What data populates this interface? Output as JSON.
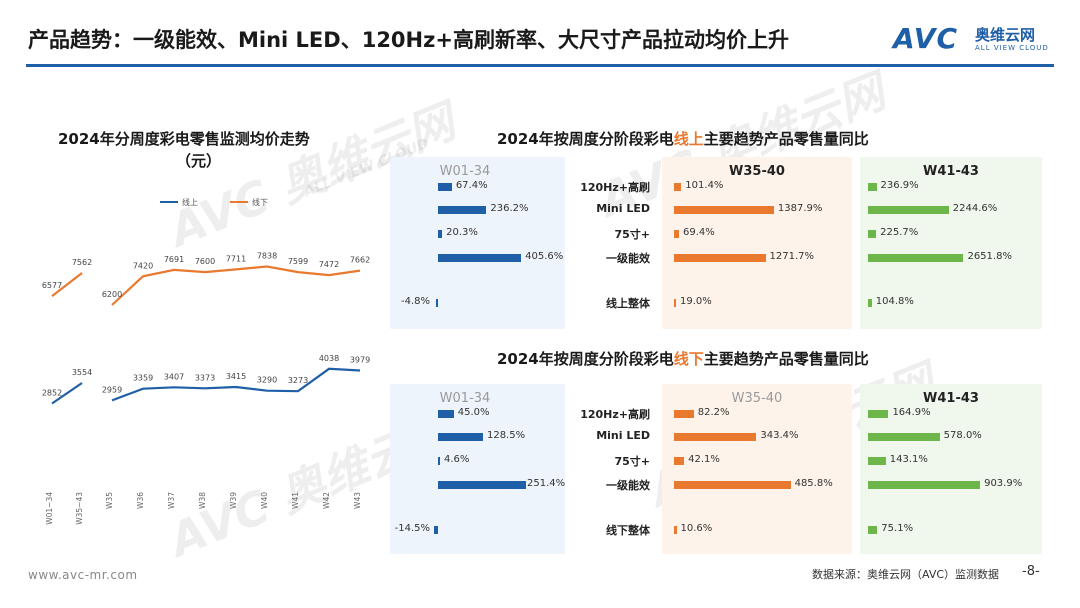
{
  "header": {
    "title": "产品趋势：一级能效、Mini LED、120Hz+高刷新率、大尺寸产品拉动均价上升",
    "logo_main": "AVC",
    "logo_cn": "奥维云网",
    "logo_en": "ALL VIEW CLOUD"
  },
  "footer": {
    "url": "www.avc-mr.com",
    "source": "数据来源：奥维云网（AVC）监测数据",
    "page": "-8-"
  },
  "watermark": {
    "main": "AVC 奥维云网",
    "sub": "ALL VIEW CLOUD"
  },
  "colors": {
    "blue": "#1f5fa8",
    "orange": "#e8792f",
    "green": "#6cb64a",
    "header_rule": "#1f5fa8"
  },
  "chart_data": [
    {
      "type": "line",
      "title": "2024年分周度彩电零售监测均价走势（元）",
      "categories": [
        "W01~34",
        "W35~43",
        "W35",
        "W36",
        "W37",
        "W38",
        "W39",
        "W40",
        "W41",
        "W42",
        "W43"
      ],
      "series": [
        {
          "name": "线上",
          "values": [
            2852,
            3554,
            2959,
            3359,
            3407,
            3373,
            3415,
            3290,
            3273,
            4038,
            3979
          ]
        },
        {
          "name": "线下",
          "values": [
            6577,
            7562,
            6200,
            7420,
            7691,
            7600,
            7711,
            7838,
            7599,
            7472,
            7662
          ]
        }
      ],
      "segments": [
        [
          0,
          1
        ],
        [
          2,
          10
        ]
      ],
      "grid": false,
      "legend": "top"
    },
    {
      "type": "bar",
      "title_parts": [
        "2024年按周度分阶段彩电",
        "线上",
        "主要趋势产品零售量同比"
      ],
      "categories": [
        "120Hz+高刷",
        "Mini LED",
        "75寸+",
        "一级能效",
        "线上整体"
      ],
      "unit": "%",
      "series": [
        {
          "name": "W01-34",
          "values": [
            67.4,
            236.2,
            20.3,
            405.6,
            -4.8
          ]
        },
        {
          "name": "W35-40",
          "values": [
            101.4,
            1387.9,
            69.4,
            1271.7,
            19.0
          ]
        },
        {
          "name": "W41-43",
          "values": [
            236.9,
            2244.6,
            225.7,
            2651.8,
            104.8
          ]
        }
      ]
    },
    {
      "type": "bar",
      "title_parts": [
        "2024年按周度分阶段彩电",
        "线下",
        "主要趋势产品零售量同比"
      ],
      "categories": [
        "120Hz+高刷",
        "Mini LED",
        "75寸+",
        "一级能效",
        "线下整体"
      ],
      "unit": "%",
      "series": [
        {
          "name": "W01-34",
          "values": [
            45.0,
            128.5,
            4.6,
            251.4,
            -14.5
          ]
        },
        {
          "name": "W35-40",
          "values": [
            82.2,
            343.4,
            42.1,
            485.8,
            10.6
          ]
        },
        {
          "name": "W41-43",
          "values": [
            164.9,
            578.0,
            143.1,
            903.9,
            75.1
          ]
        }
      ]
    }
  ]
}
